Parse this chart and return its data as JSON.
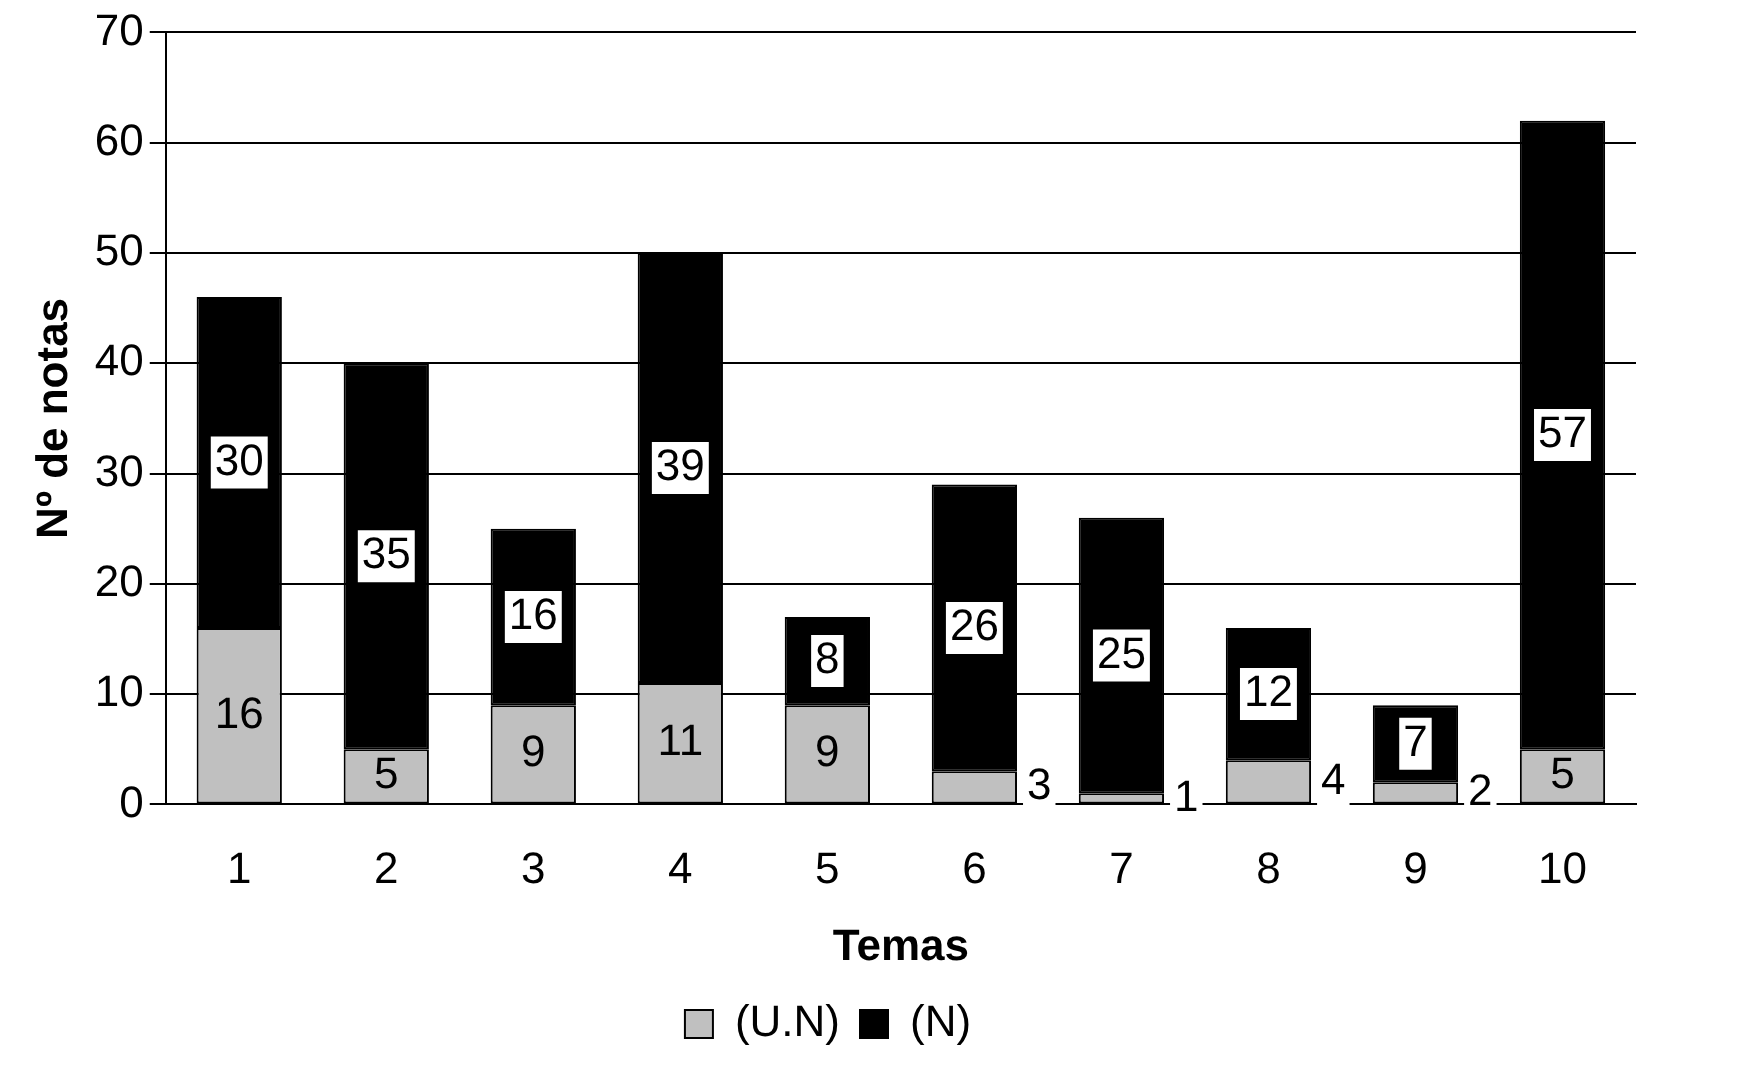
{
  "chart_data": {
    "type": "bar",
    "xlabel": "Temas",
    "ylabel": "Nº de notas",
    "categories": [
      "1",
      "2",
      "3",
      "4",
      "5",
      "6",
      "7",
      "8",
      "9",
      "10"
    ],
    "stacked": true,
    "data_labels": true,
    "grid": "y",
    "legend": "bottom",
    "ylim": [
      0,
      70
    ],
    "yticks": [
      0,
      10,
      20,
      30,
      40,
      50,
      60,
      70
    ],
    "series": [
      {
        "name": "(U.N)",
        "color": "#c0c0c0",
        "values": [
          16,
          5,
          9,
          11,
          9,
          3,
          1,
          4,
          2,
          5
        ]
      },
      {
        "name": "(N)",
        "color": "#000000",
        "values": [
          30,
          35,
          16,
          39,
          8,
          26,
          25,
          12,
          7,
          57
        ]
      }
    ]
  }
}
